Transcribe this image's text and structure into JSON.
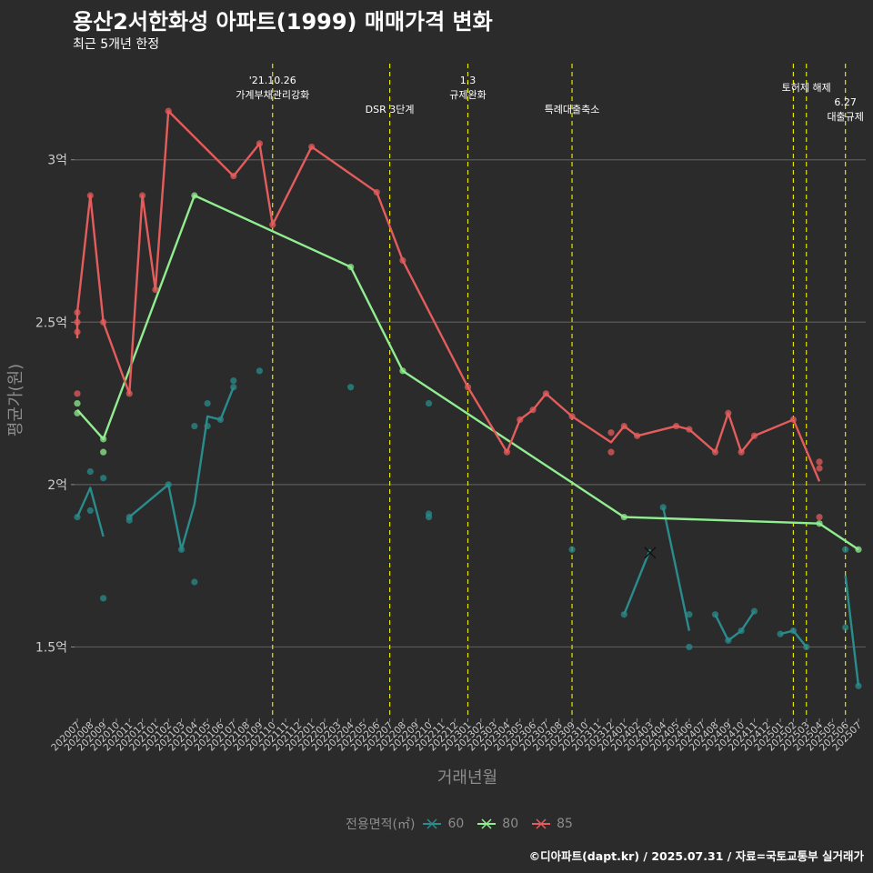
{
  "title": "용산2서한화성 아파트(1999) 매매가격 변화",
  "subtitle": "최근 5개년 한정",
  "caption": "©디아파트(dapt.kr) / 2025.07.31 / 자료=국토교통부 실거래가",
  "chart_data": {
    "type": "line",
    "xlabel": "거래년월",
    "ylabel": "평균가(원)",
    "categories": [
      "202007",
      "202008",
      "202009",
      "202010",
      "202011",
      "202012",
      "202101",
      "202102",
      "202103",
      "202104",
      "202105",
      "202106",
      "202107",
      "202108",
      "202109",
      "202110",
      "202111",
      "202112",
      "202201",
      "202202",
      "202203",
      "202204",
      "202205",
      "202206",
      "202207",
      "202208",
      "202209",
      "202210",
      "202211",
      "202212",
      "202301",
      "202302",
      "202303",
      "202304",
      "202305",
      "202306",
      "202307",
      "202308",
      "202309",
      "202310",
      "202311",
      "202312",
      "202401",
      "202402",
      "202403",
      "202404",
      "202405",
      "202406",
      "202407",
      "202408",
      "202409",
      "202410",
      "202411",
      "202412",
      "202501",
      "202502",
      "202503",
      "202504",
      "202505",
      "202506",
      "202507"
    ],
    "y_ticks": [
      {
        "value": 1.5,
        "label": "1.5억"
      },
      {
        "value": 2.0,
        "label": "2억"
      },
      {
        "value": 2.5,
        "label": "2.5억"
      },
      {
        "value": 3.0,
        "label": "3억"
      }
    ],
    "ylim": [
      1.28,
      3.31
    ],
    "unit_note": "values in 억원",
    "grid": true,
    "legend_title": "전용면적(㎡)",
    "legend_position": "bottom",
    "series": [
      {
        "name": "60",
        "color": "#2a8c8c",
        "line": [
          [
            "202007",
            1.9
          ],
          [
            "202008",
            1.99
          ],
          [
            "202009",
            1.84
          ],
          null,
          [
            "202011",
            1.9
          ],
          [
            "202102",
            2.0
          ],
          [
            "202103",
            1.8
          ],
          [
            "202104",
            1.94
          ],
          [
            "202105",
            2.21
          ],
          [
            "202106",
            2.2
          ],
          [
            "202107",
            2.3
          ],
          null,
          [
            "202401",
            1.6
          ],
          [
            "202403",
            1.8
          ],
          null,
          [
            "202404",
            1.93
          ],
          [
            "202406",
            1.55
          ],
          null,
          [
            "202408",
            1.6
          ],
          [
            "202409",
            1.52
          ],
          [
            "202410",
            1.55
          ],
          [
            "202411",
            1.61
          ],
          null,
          [
            "202501",
            1.54
          ],
          [
            "202502",
            1.55
          ],
          [
            "202503",
            1.5
          ],
          null,
          [
            "202506",
            1.72
          ],
          [
            "202507",
            1.38
          ]
        ],
        "points": [
          [
            "202007",
            1.9
          ],
          [
            "202008",
            2.04
          ],
          [
            "202008",
            1.92
          ],
          [
            "202009",
            2.02
          ],
          [
            "202009",
            1.65
          ],
          [
            "202011",
            1.89
          ],
          [
            "202011",
            1.9
          ],
          [
            "202102",
            2.0
          ],
          [
            "202103",
            1.8
          ],
          [
            "202104",
            2.18
          ],
          [
            "202104",
            1.7
          ],
          [
            "202105",
            2.25
          ],
          [
            "202105",
            2.18
          ],
          [
            "202106",
            2.2
          ],
          [
            "202107",
            2.32
          ],
          [
            "202107",
            2.3
          ],
          [
            "202109",
            2.35
          ],
          [
            "202204",
            2.3
          ],
          [
            "202210",
            2.25
          ],
          [
            "202210",
            1.91
          ],
          [
            "202210",
            1.9
          ],
          [
            "202309",
            1.8
          ],
          [
            "202401",
            1.6
          ],
          [
            "202404",
            1.93
          ],
          [
            "202406",
            1.6
          ],
          [
            "202406",
            1.5
          ],
          [
            "202408",
            1.6
          ],
          [
            "202409",
            1.52
          ],
          [
            "202410",
            1.55
          ],
          [
            "202411",
            1.61
          ],
          [
            "202501",
            1.54
          ],
          [
            "202502",
            1.55
          ],
          [
            "202503",
            1.5
          ],
          [
            "202506",
            1.8
          ],
          [
            "202506",
            1.56
          ],
          [
            "202507",
            1.38
          ]
        ],
        "cross_marks": [
          [
            "202403",
            1.79
          ]
        ]
      },
      {
        "name": "80",
        "color": "#90ee90",
        "line": [
          [
            "202007",
            2.23
          ],
          [
            "202009",
            2.14
          ],
          [
            "202104",
            2.89
          ],
          [
            "202204",
            2.67
          ],
          [
            "202208",
            2.35
          ],
          [
            "202401",
            1.9
          ],
          [
            "202504",
            1.88
          ],
          [
            "202507",
            1.8
          ]
        ],
        "points": [
          [
            "202007",
            2.25
          ],
          [
            "202007",
            2.22
          ],
          [
            "202009",
            2.1
          ],
          [
            "202009",
            2.14
          ],
          [
            "202104",
            2.89
          ],
          [
            "202204",
            2.67
          ],
          [
            "202208",
            2.35
          ],
          [
            "202401",
            1.9
          ],
          [
            "202504",
            1.88
          ],
          [
            "202507",
            1.8
          ]
        ]
      },
      {
        "name": "85",
        "color": "#e45c5c",
        "line": [
          [
            "202007",
            2.45
          ],
          [
            "202007",
            2.53
          ],
          [
            "202008",
            2.89
          ],
          [
            "202009",
            2.5
          ],
          [
            "202011",
            2.28
          ],
          [
            "202012",
            2.89
          ],
          [
            "202101",
            2.6
          ],
          [
            "202102",
            3.15
          ],
          [
            "202107",
            2.95
          ],
          [
            "202109",
            3.05
          ],
          [
            "202110",
            2.8
          ],
          [
            "202201",
            3.04
          ],
          [
            "202206",
            2.9
          ],
          [
            "202208",
            2.69
          ],
          [
            "202301",
            2.3
          ],
          [
            "202304",
            2.1
          ],
          [
            "202305",
            2.2
          ],
          [
            "202306",
            2.23
          ],
          [
            "202307",
            2.28
          ],
          [
            "202309",
            2.21
          ],
          [
            "202312",
            2.13
          ],
          [
            "202401",
            2.18
          ],
          [
            "202402",
            2.15
          ],
          [
            "202405",
            2.18
          ],
          [
            "202406",
            2.17
          ],
          [
            "202408",
            2.1
          ],
          [
            "202409",
            2.22
          ],
          [
            "202410",
            2.1
          ],
          [
            "202411",
            2.15
          ],
          [
            "202502",
            2.2
          ],
          [
            "202504",
            2.01
          ]
        ],
        "points": [
          [
            "202007",
            2.53
          ],
          [
            "202007",
            2.5
          ],
          [
            "202007",
            2.47
          ],
          [
            "202007",
            2.28
          ],
          [
            "202008",
            2.89
          ],
          [
            "202009",
            2.5
          ],
          [
            "202011",
            2.28
          ],
          [
            "202012",
            2.89
          ],
          [
            "202101",
            2.6
          ],
          [
            "202102",
            3.15
          ],
          [
            "202107",
            2.95
          ],
          [
            "202109",
            3.05
          ],
          [
            "202110",
            2.8
          ],
          [
            "202201",
            3.04
          ],
          [
            "202206",
            2.9
          ],
          [
            "202208",
            2.69
          ],
          [
            "202301",
            2.3
          ],
          [
            "202304",
            2.1
          ],
          [
            "202305",
            2.2
          ],
          [
            "202306",
            2.23
          ],
          [
            "202307",
            2.28
          ],
          [
            "202309",
            2.21
          ],
          [
            "202312",
            2.16
          ],
          [
            "202312",
            2.1
          ],
          [
            "202401",
            2.18
          ],
          [
            "202402",
            2.15
          ],
          [
            "202405",
            2.18
          ],
          [
            "202406",
            2.17
          ],
          [
            "202408",
            2.1
          ],
          [
            "202409",
            2.22
          ],
          [
            "202410",
            2.1
          ],
          [
            "202411",
            2.15
          ],
          [
            "202502",
            2.2
          ],
          [
            "202504",
            2.07
          ],
          [
            "202504",
            2.05
          ],
          [
            "202504",
            1.9
          ]
        ]
      }
    ],
    "events": [
      {
        "month": "202110",
        "lines": [
          "'21.10.26",
          "가계부채관리강화"
        ],
        "level": 1
      },
      {
        "month": "202207",
        "lines": [
          "DSR 3단계"
        ],
        "level": 3
      },
      {
        "month": "202301",
        "lines": [
          "1.3",
          "규제완화"
        ],
        "level": 1
      },
      {
        "month": "202309",
        "lines": [
          "특례대출축소"
        ],
        "level": 3
      },
      {
        "month": "202502",
        "lines": [],
        "level": 2
      },
      {
        "month": "202503",
        "lines": [
          "토허제 해제"
        ],
        "level": 2
      },
      {
        "month": "202506",
        "lines": [
          "6.27",
          "대출규제"
        ],
        "level": 3
      }
    ],
    "event_line_color": "#e6e600"
  }
}
